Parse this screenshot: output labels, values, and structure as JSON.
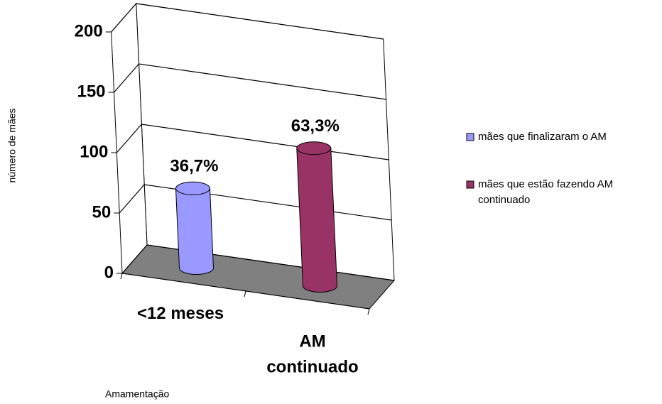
{
  "chart_data": {
    "type": "bar3d",
    "categories": [
      "<12 meses",
      "AM continuado"
    ],
    "series": [
      {
        "name": "mães que finalizaram o AM",
        "color": "#9999ff",
        "values": [
          66,
          null
        ]
      },
      {
        "name": "mães que estão fazendo AM continuado",
        "color": "#993366",
        "values": [
          null,
          114
        ]
      }
    ],
    "annotations": [
      "36,7%",
      "63,3%"
    ],
    "x_label": "Amamentação",
    "y_label": "número de mães",
    "ylim": [
      0,
      200
    ],
    "yticks": [
      0,
      50,
      100,
      150,
      200
    ],
    "grid": true,
    "legend": "right",
    "floor_color": "#808080"
  }
}
